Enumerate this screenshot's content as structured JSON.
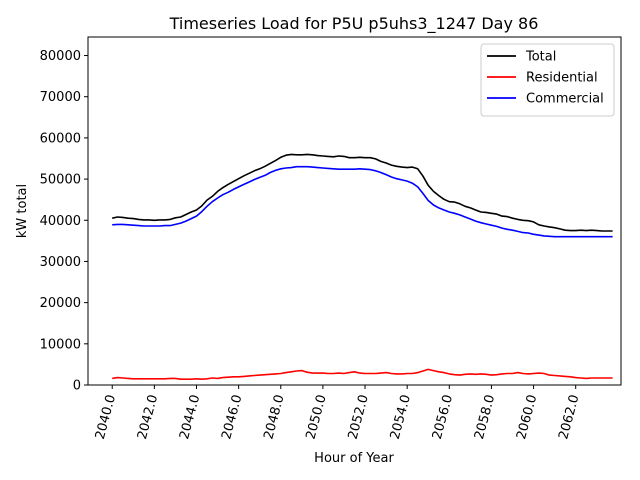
{
  "chart_data": {
    "type": "line",
    "title": "Timeseries Load for P5U p5uhs3_1247  Day 86",
    "xlabel": "Hour of Year",
    "ylabel": "kW total",
    "xlim": [
      2038.85,
      2064.15
    ],
    "ylim": [
      0,
      84500
    ],
    "xticks": [
      2040,
      2042,
      2044,
      2046,
      2048,
      2050,
      2052,
      2054,
      2056,
      2058,
      2060,
      2062
    ],
    "xtick_labels": [
      "2040.0",
      "2042.0",
      "2044.0",
      "2046.0",
      "2048.0",
      "2050.0",
      "2052.0",
      "2054.0",
      "2056.0",
      "2058.0",
      "2060.0",
      "2062.0"
    ],
    "yticks": [
      0,
      10000,
      20000,
      30000,
      40000,
      50000,
      60000,
      70000,
      80000
    ],
    "ytick_labels": [
      "0",
      "10000",
      "20000",
      "30000",
      "40000",
      "50000",
      "60000",
      "70000",
      "80000"
    ],
    "legend_position": "top-right",
    "x": [
      2040.0,
      2040.25,
      2040.5,
      2040.75,
      2041.0,
      2041.25,
      2041.5,
      2041.75,
      2042.0,
      2042.25,
      2042.5,
      2042.75,
      2043.0,
      2043.25,
      2043.5,
      2043.75,
      2044.0,
      2044.25,
      2044.5,
      2044.75,
      2045.0,
      2045.25,
      2045.5,
      2045.75,
      2046.0,
      2046.25,
      2046.5,
      2046.75,
      2047.0,
      2047.25,
      2047.5,
      2047.75,
      2048.0,
      2048.25,
      2048.5,
      2048.75,
      2049.0,
      2049.25,
      2049.5,
      2049.75,
      2050.0,
      2050.25,
      2050.5,
      2050.75,
      2051.0,
      2051.25,
      2051.5,
      2051.75,
      2052.0,
      2052.25,
      2052.5,
      2052.75,
      2053.0,
      2053.25,
      2053.5,
      2053.75,
      2054.0,
      2054.25,
      2054.5,
      2054.75,
      2055.0,
      2055.25,
      2055.5,
      2055.75,
      2056.0,
      2056.25,
      2056.5,
      2056.75,
      2057.0,
      2057.25,
      2057.5,
      2057.75,
      2058.0,
      2058.25,
      2058.5,
      2058.75,
      2059.0,
      2059.25,
      2059.5,
      2059.75,
      2060.0,
      2060.25,
      2060.5,
      2060.75,
      2061.0,
      2061.25,
      2061.5,
      2061.75,
      2062.0,
      2062.25,
      2062.5,
      2062.75,
      2063.0,
      2063.25,
      2063.5,
      2063.75
    ],
    "series": [
      {
        "name": "Total",
        "color": "#000000",
        "values": [
          40500,
          40800,
          40700,
          40500,
          40400,
          40200,
          40100,
          40100,
          40000,
          40100,
          40100,
          40200,
          40600,
          40800,
          41400,
          42000,
          42500,
          43500,
          44900,
          45800,
          47000,
          47900,
          48700,
          49400,
          50100,
          50800,
          51400,
          52000,
          52500,
          53100,
          53800,
          54500,
          55300,
          55800,
          56000,
          55900,
          55900,
          56000,
          55900,
          55700,
          55600,
          55500,
          55400,
          55600,
          55500,
          55200,
          55200,
          55300,
          55200,
          55200,
          54900,
          54300,
          53900,
          53400,
          53100,
          52900,
          52800,
          52900,
          52500,
          50700,
          48500,
          47000,
          46000,
          45100,
          44500,
          44400,
          44000,
          43400,
          43000,
          42500,
          42000,
          41900,
          41700,
          41500,
          41000,
          40900,
          40500,
          40200,
          40000,
          39900,
          39600,
          38900,
          38600,
          38400,
          38200,
          37900,
          37600,
          37500,
          37500,
          37600,
          37500,
          37600,
          37500,
          37400,
          37400,
          37400
        ]
      },
      {
        "name": "Residential",
        "color": "#ff0000",
        "values": [
          1600,
          1800,
          1700,
          1600,
          1500,
          1500,
          1500,
          1500,
          1500,
          1500,
          1500,
          1600,
          1600,
          1400,
          1400,
          1400,
          1500,
          1400,
          1500,
          1700,
          1600,
          1800,
          1900,
          2000,
          2000,
          2100,
          2200,
          2300,
          2400,
          2500,
          2600,
          2700,
          2800,
          3000,
          3200,
          3400,
          3500,
          3100,
          2900,
          2900,
          2900,
          2800,
          2800,
          2900,
          2800,
          3000,
          3200,
          2900,
          2800,
          2800,
          2800,
          2900,
          3000,
          2800,
          2700,
          2700,
          2800,
          2800,
          3000,
          3400,
          3800,
          3500,
          3200,
          3000,
          2700,
          2500,
          2400,
          2600,
          2700,
          2600,
          2700,
          2600,
          2400,
          2500,
          2700,
          2800,
          2800,
          3000,
          2800,
          2700,
          2800,
          2900,
          2800,
          2400,
          2300,
          2200,
          2100,
          2000,
          1800,
          1700,
          1600,
          1700,
          1700,
          1700,
          1700,
          1700
        ]
      },
      {
        "name": "Commercial",
        "color": "#0000ff",
        "values": [
          38900,
          39000,
          39000,
          38900,
          38800,
          38700,
          38600,
          38600,
          38600,
          38600,
          38700,
          38700,
          39000,
          39300,
          39800,
          40400,
          41000,
          42100,
          43400,
          44500,
          45400,
          46200,
          46800,
          47500,
          48100,
          48700,
          49300,
          49900,
          50400,
          50900,
          51600,
          52100,
          52500,
          52700,
          52800,
          53000,
          53000,
          53000,
          52900,
          52800,
          52700,
          52600,
          52500,
          52400,
          52400,
          52400,
          52400,
          52500,
          52400,
          52300,
          52000,
          51600,
          51100,
          50500,
          50100,
          49800,
          49500,
          49000,
          48100,
          46500,
          44800,
          43700,
          43000,
          42500,
          42000,
          41700,
          41300,
          40800,
          40300,
          39800,
          39400,
          39100,
          38800,
          38500,
          38100,
          37800,
          37600,
          37300,
          37000,
          36900,
          36600,
          36400,
          36200,
          36100,
          36000,
          36000,
          36000,
          36000,
          36000,
          36000,
          36000,
          36000,
          36000,
          36000,
          36000,
          36000
        ]
      }
    ]
  }
}
